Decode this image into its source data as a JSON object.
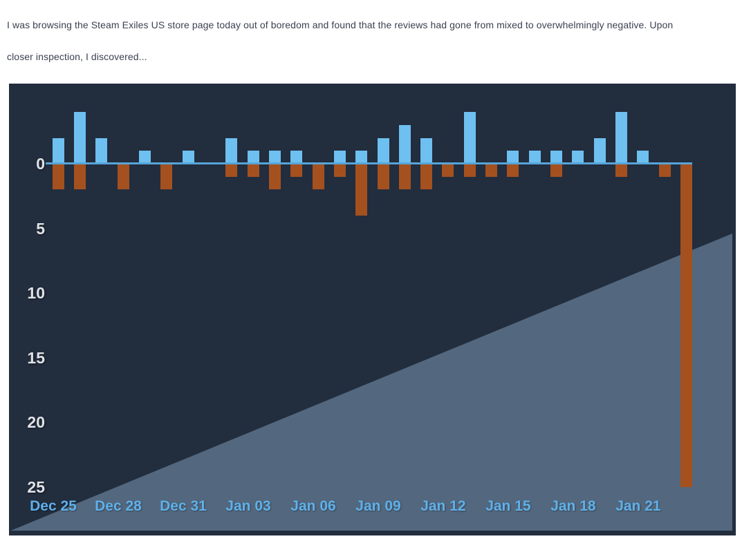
{
  "post": {
    "line1": "I was browsing the Steam Exiles US store page today out of boredom and found that the reviews had gone from mixed to overwhelmingly negative. Upon",
    "line2": "closer inspection, I discovered..."
  },
  "chart_data": {
    "type": "bar",
    "description": "Daily Steam review histogram: positive reviews drawn upward in blue, negative reviews drawn downward in orange; y axis counts downward from 0 to 25",
    "x": [
      "Dec 25",
      "Dec 26",
      "Dec 27",
      "Dec 28",
      "Dec 29",
      "Dec 30",
      "Dec 31",
      "Jan 01",
      "Jan 02",
      "Jan 03",
      "Jan 04",
      "Jan 05",
      "Jan 06",
      "Jan 07",
      "Jan 08",
      "Jan 09",
      "Jan 10",
      "Jan 11",
      "Jan 12",
      "Jan 13",
      "Jan 14",
      "Jan 15",
      "Jan 16",
      "Jan 17",
      "Jan 18",
      "Jan 19",
      "Jan 20",
      "Jan 21",
      "Jan 22",
      "Jan 23"
    ],
    "series": [
      {
        "name": "positive-reviews",
        "direction": "up",
        "values": [
          2,
          4,
          2,
          0,
          1,
          0,
          1,
          0,
          2,
          1,
          1,
          1,
          0,
          1,
          1,
          2,
          3,
          2,
          0,
          4,
          0,
          1,
          1,
          1,
          1,
          2,
          4,
          1,
          0,
          0
        ]
      },
      {
        "name": "negative-reviews",
        "direction": "down",
        "values": [
          2,
          2,
          0,
          2,
          0,
          2,
          0,
          0,
          1,
          1,
          2,
          1,
          2,
          1,
          4,
          2,
          2,
          2,
          1,
          1,
          1,
          1,
          0,
          1,
          0,
          0,
          1,
          0,
          1,
          25
        ]
      }
    ],
    "x_tick_labels": [
      "Dec 25",
      "Dec 28",
      "Dec 31",
      "Jan 03",
      "Jan 06",
      "Jan 09",
      "Jan 12",
      "Jan 15",
      "Jan 18",
      "Jan 21"
    ],
    "y_tick_labels": [
      "0",
      "5",
      "10",
      "15",
      "20",
      "25"
    ],
    "y_tick_values": [
      0,
      5,
      10,
      15,
      20,
      25
    ],
    "ylim": [
      0,
      25
    ],
    "grid": false,
    "legend": "none"
  },
  "colors": {
    "positive_bar": "#6ec0f0",
    "negative_bar": "#a5511f",
    "zero_line": "#57a5d9",
    "chart_background": "#222d3e",
    "diagonal_overlay": "#53687e",
    "x_tick_color": "#5fb0ea",
    "y_tick_color": "#dfe2e6",
    "post_text_color": "#3b4150"
  }
}
